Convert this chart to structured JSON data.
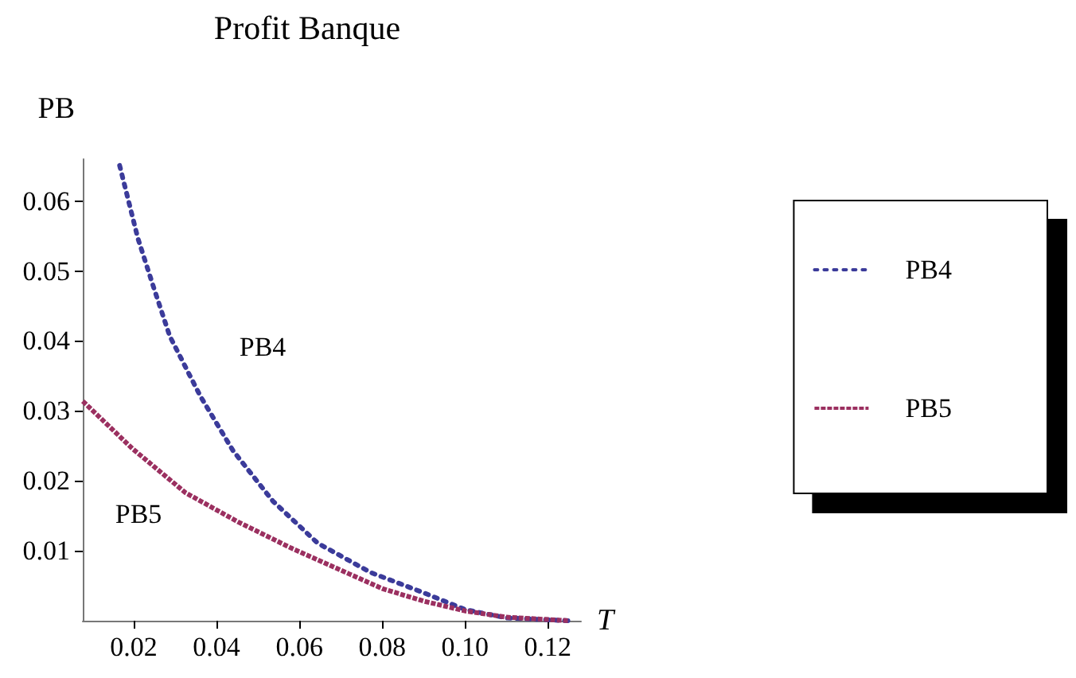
{
  "chart_data": {
    "type": "line",
    "title": "Profit Banque",
    "xlabel": "T",
    "ylabel": "PB",
    "xlim": [
      0.0077,
      0.128
    ],
    "xticks": [
      0.02,
      0.04,
      0.06,
      0.08,
      {
        "value": 0.1,
        "label": "0.10"
      },
      0.12
    ],
    "ylim": [
      0,
      0.066
    ],
    "yticks": [
      0.01,
      0.02,
      0.03,
      0.04,
      0.05,
      0.06
    ],
    "grid": false,
    "legend": "right",
    "marker": "none",
    "series": [
      {
        "name": "PB4",
        "color": "#3b3b9a",
        "line_style": "dotted",
        "x": [
          0.0166,
          0.021,
          0.0249,
          0.0287,
          0.0361,
          0.044,
          0.0536,
          0.0644,
          0.0772,
          0.09,
          0.1,
          0.11,
          0.125
        ],
        "values": [
          0.0651,
          0.0547,
          0.0475,
          0.0407,
          0.0321,
          0.0243,
          0.0171,
          0.0111,
          0.0069,
          0.004,
          0.0016,
          0.0004,
          0
        ]
      },
      {
        "name": "PB5",
        "color": "#9b3060",
        "line_style": "dashed",
        "x": [
          0.0077,
          0.0197,
          0.0325,
          0.0453,
          0.058,
          0.072,
          0.08,
          0.09,
          0.1,
          0.11,
          0.125
        ],
        "values": [
          0.0314,
          0.0246,
          0.0183,
          0.0141,
          0.0104,
          0.0067,
          0.0046,
          0.0028,
          0.0014,
          0.0005,
          0
        ]
      }
    ],
    "annotations": [
      "PB4",
      "PB5"
    ]
  }
}
